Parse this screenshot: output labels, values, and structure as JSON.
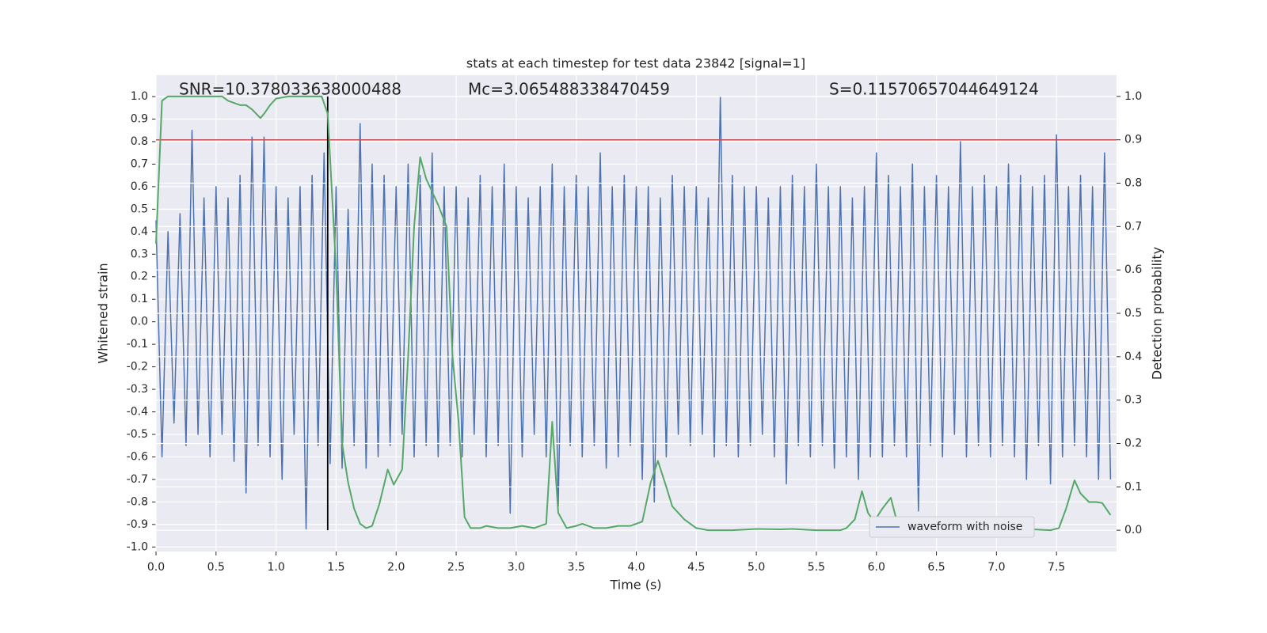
{
  "chart_data": {
    "type": "line",
    "title": "stats at each timestep for test data 23842 [signal=1]",
    "xlabel": "Time (s)",
    "ylabel": "Whitened strain",
    "y2label": "Detection probability",
    "annotations": [
      "SNR=10.378033638000488",
      "Mc=3.065488338470459",
      "S=0.11570657044649124"
    ],
    "xlim": [
      0,
      8
    ],
    "ylim": [
      -1.02,
      1.095
    ],
    "y2lim": [
      -0.049,
      1.049
    ],
    "xticks": [
      {
        "value": 0,
        "label": "0.0"
      },
      0.5,
      {
        "value": 1,
        "label": "1.0"
      },
      1.5,
      {
        "value": 2,
        "label": "2.0"
      },
      2.5,
      {
        "value": 3,
        "label": "3.0"
      },
      3.5,
      {
        "value": 4,
        "label": "4.0"
      },
      4.5,
      {
        "value": 5,
        "label": "5.0"
      },
      5.5,
      {
        "value": 6,
        "label": "6.0"
      },
      6.5,
      {
        "value": 7,
        "label": "7.0"
      },
      7.5
    ],
    "yticks": [
      {
        "value": -1,
        "label": "-1.0"
      },
      -0.9,
      -0.8,
      -0.7,
      -0.6,
      -0.5,
      -0.4,
      -0.3,
      -0.2,
      -0.1,
      {
        "value": 0,
        "label": "0.0"
      },
      0.1,
      0.2,
      0.3,
      0.4,
      0.5,
      0.6,
      0.7,
      0.8,
      0.9,
      {
        "value": 1,
        "label": "1.0"
      }
    ],
    "y2ticks": [
      {
        "value": 0,
        "label": "0.0"
      },
      0.1,
      0.2,
      0.3,
      0.4,
      0.5,
      0.6,
      0.7,
      0.8,
      0.9,
      {
        "value": 1,
        "label": "1.0"
      }
    ],
    "grid": true,
    "legend": "lower right",
    "threshold": {
      "value": 0.9,
      "axis": "y2",
      "color": "#c44e52"
    },
    "vline": {
      "x": 1.43,
      "y2range": [
        0,
        1
      ],
      "color": "#000000"
    },
    "series": [
      {
        "name": "waveform with noise",
        "color": "#4c72b0",
        "x": [
          0,
          0.05,
          0.1,
          0.15,
          0.2,
          0.25,
          0.3,
          0.35,
          0.4,
          0.45,
          0.5,
          0.55,
          0.6,
          0.65,
          0.7,
          0.75,
          0.8,
          0.85,
          0.9,
          0.95,
          1,
          1.05,
          1.1,
          1.15,
          1.2,
          1.25,
          1.3,
          1.35,
          1.4,
          1.45,
          1.5,
          1.55,
          1.6,
          1.65,
          1.7,
          1.75,
          1.8,
          1.85,
          1.9,
          1.95,
          2,
          2.05,
          2.1,
          2.15,
          2.2,
          2.25,
          2.3,
          2.35,
          2.4,
          2.45,
          2.5,
          2.55,
          2.6,
          2.65,
          2.7,
          2.75,
          2.8,
          2.85,
          2.9,
          2.95,
          3,
          3.05,
          3.1,
          3.15,
          3.2,
          3.25,
          3.3,
          3.35,
          3.4,
          3.45,
          3.5,
          3.55,
          3.6,
          3.65,
          3.7,
          3.75,
          3.8,
          3.85,
          3.9,
          3.95,
          4,
          4.05,
          4.1,
          4.15,
          4.2,
          4.25,
          4.3,
          4.35,
          4.4,
          4.45,
          4.5,
          4.55,
          4.6,
          4.65,
          4.7,
          4.75,
          4.8,
          4.85,
          4.9,
          4.95,
          5,
          5.05,
          5.1,
          5.15,
          5.2,
          5.25,
          5.3,
          5.35,
          5.4,
          5.45,
          5.5,
          5.55,
          5.6,
          5.65,
          5.7,
          5.75,
          5.8,
          5.85,
          5.9,
          5.95,
          6,
          6.05,
          6.1,
          6.15,
          6.2,
          6.25,
          6.3,
          6.35,
          6.4,
          6.45,
          6.5,
          6.55,
          6.6,
          6.65,
          6.7,
          6.75,
          6.8,
          6.85,
          6.9,
          6.95,
          7,
          7.05,
          7.1,
          7.15,
          7.2,
          7.25,
          7.3,
          7.35,
          7.4,
          7.45,
          7.5,
          7.55,
          7.6,
          7.65,
          7.7,
          7.75,
          7.8,
          7.85,
          7.9,
          7.95
        ],
        "values": [
          0.45,
          -0.6,
          0.4,
          -0.45,
          0.48,
          -0.55,
          0.85,
          -0.5,
          0.55,
          -0.6,
          0.6,
          -0.5,
          0.55,
          -0.62,
          0.65,
          -0.76,
          0.82,
          -0.55,
          0.82,
          -0.6,
          0.6,
          -0.7,
          0.55,
          -0.5,
          0.6,
          -0.92,
          0.65,
          -0.55,
          0.75,
          -0.63,
          0.6,
          -0.65,
          0.5,
          -0.55,
          0.88,
          -0.65,
          0.7,
          -0.6,
          0.65,
          -0.55,
          0.6,
          -0.5,
          0.7,
          -0.6,
          0.65,
          -0.55,
          0.75,
          -0.6,
          0.6,
          -0.55,
          0.6,
          -0.6,
          0.55,
          -0.5,
          0.65,
          -0.6,
          0.6,
          -0.55,
          0.7,
          -0.85,
          0.6,
          -0.6,
          0.55,
          -0.5,
          0.6,
          -0.6,
          0.7,
          -0.82,
          0.6,
          -0.55,
          0.65,
          -0.6,
          0.6,
          -0.55,
          0.75,
          -0.65,
          0.6,
          -0.6,
          0.65,
          -0.55,
          0.6,
          -0.7,
          0.6,
          -0.8,
          0.55,
          -0.6,
          0.65,
          -0.5,
          0.6,
          -0.55,
          0.6,
          -0.5,
          0.55,
          -0.6,
          1.0,
          -0.55,
          0.65,
          -0.6,
          0.6,
          -0.55,
          0.6,
          -0.5,
          0.55,
          -0.6,
          0.6,
          -0.72,
          0.65,
          -0.55,
          0.6,
          -0.6,
          0.7,
          -0.55,
          0.6,
          -0.65,
          0.6,
          -0.6,
          0.55,
          -0.7,
          0.6,
          -0.6,
          0.75,
          -0.6,
          0.65,
          -0.55,
          0.6,
          -0.6,
          0.7,
          -0.84,
          0.6,
          -0.55,
          0.65,
          -0.6,
          0.6,
          -0.5,
          0.8,
          -0.6,
          0.6,
          -0.55,
          0.65,
          -0.6,
          0.6,
          -0.55,
          0.7,
          -0.6,
          0.65,
          -0.7,
          0.6,
          -0.55,
          0.65,
          -0.72,
          0.83,
          -0.6,
          0.6,
          -0.55,
          0.65,
          -0.6,
          0.6,
          -0.7,
          0.75,
          -0.7
        ]
      },
      {
        "color": "#55a868",
        "axis": "y2",
        "x": [
          0,
          0.05,
          0.1,
          0.2,
          0.3,
          0.4,
          0.5,
          0.55,
          0.6,
          0.7,
          0.75,
          0.8,
          0.87,
          0.9,
          0.95,
          1,
          1.1,
          1.2,
          1.3,
          1.38,
          1.43,
          1.5,
          1.55,
          1.6,
          1.65,
          1.7,
          1.75,
          1.8,
          1.86,
          1.93,
          1.98,
          2.05,
          2.1,
          2.15,
          2.2,
          2.25,
          2.3,
          2.35,
          2.42,
          2.47,
          2.52,
          2.57,
          2.62,
          2.7,
          2.75,
          2.85,
          2.95,
          3.05,
          3.15,
          3.25,
          3.3,
          3.35,
          3.42,
          3.5,
          3.55,
          3.65,
          3.75,
          3.85,
          3.95,
          4.05,
          4.12,
          4.18,
          4.25,
          4.3,
          4.4,
          4.5,
          4.6,
          4.8,
          5,
          5.2,
          5.3,
          5.5,
          5.7,
          5.75,
          5.82,
          5.88,
          5.93,
          5.98,
          6.05,
          6.12,
          6.18,
          6.25,
          6.5,
          6.7,
          6.9,
          7.1,
          7.3,
          7.45,
          7.52,
          7.58,
          7.65,
          7.7,
          7.77,
          7.83,
          7.88,
          7.95
        ],
        "values": [
          0.66,
          0.99,
          1,
          1,
          1,
          1,
          1,
          1,
          0.99,
          0.98,
          0.98,
          0.97,
          0.95,
          0.96,
          0.98,
          0.995,
          1,
          1,
          1,
          1,
          0.96,
          0.6,
          0.2,
          0.11,
          0.05,
          0.015,
          0.005,
          0.01,
          0.06,
          0.14,
          0.105,
          0.14,
          0.4,
          0.7,
          0.86,
          0.81,
          0.78,
          0.75,
          0.7,
          0.4,
          0.25,
          0.03,
          0.005,
          0.005,
          0.01,
          0.005,
          0.005,
          0.01,
          0.005,
          0.015,
          0.25,
          0.04,
          0.005,
          0.01,
          0.015,
          0.005,
          0.005,
          0.01,
          0.01,
          0.02,
          0.11,
          0.16,
          0.1,
          0.055,
          0.025,
          0.005,
          0,
          0,
          0.003,
          0.002,
          0.003,
          0,
          0,
          0.005,
          0.025,
          0.09,
          0.04,
          0.02,
          0.05,
          0.075,
          0.01,
          0,
          0,
          0.003,
          0.003,
          0,
          0.002,
          0,
          0.005,
          0.05,
          0.115,
          0.085,
          0.065,
          0.065,
          0.063,
          0.035
        ]
      }
    ]
  }
}
